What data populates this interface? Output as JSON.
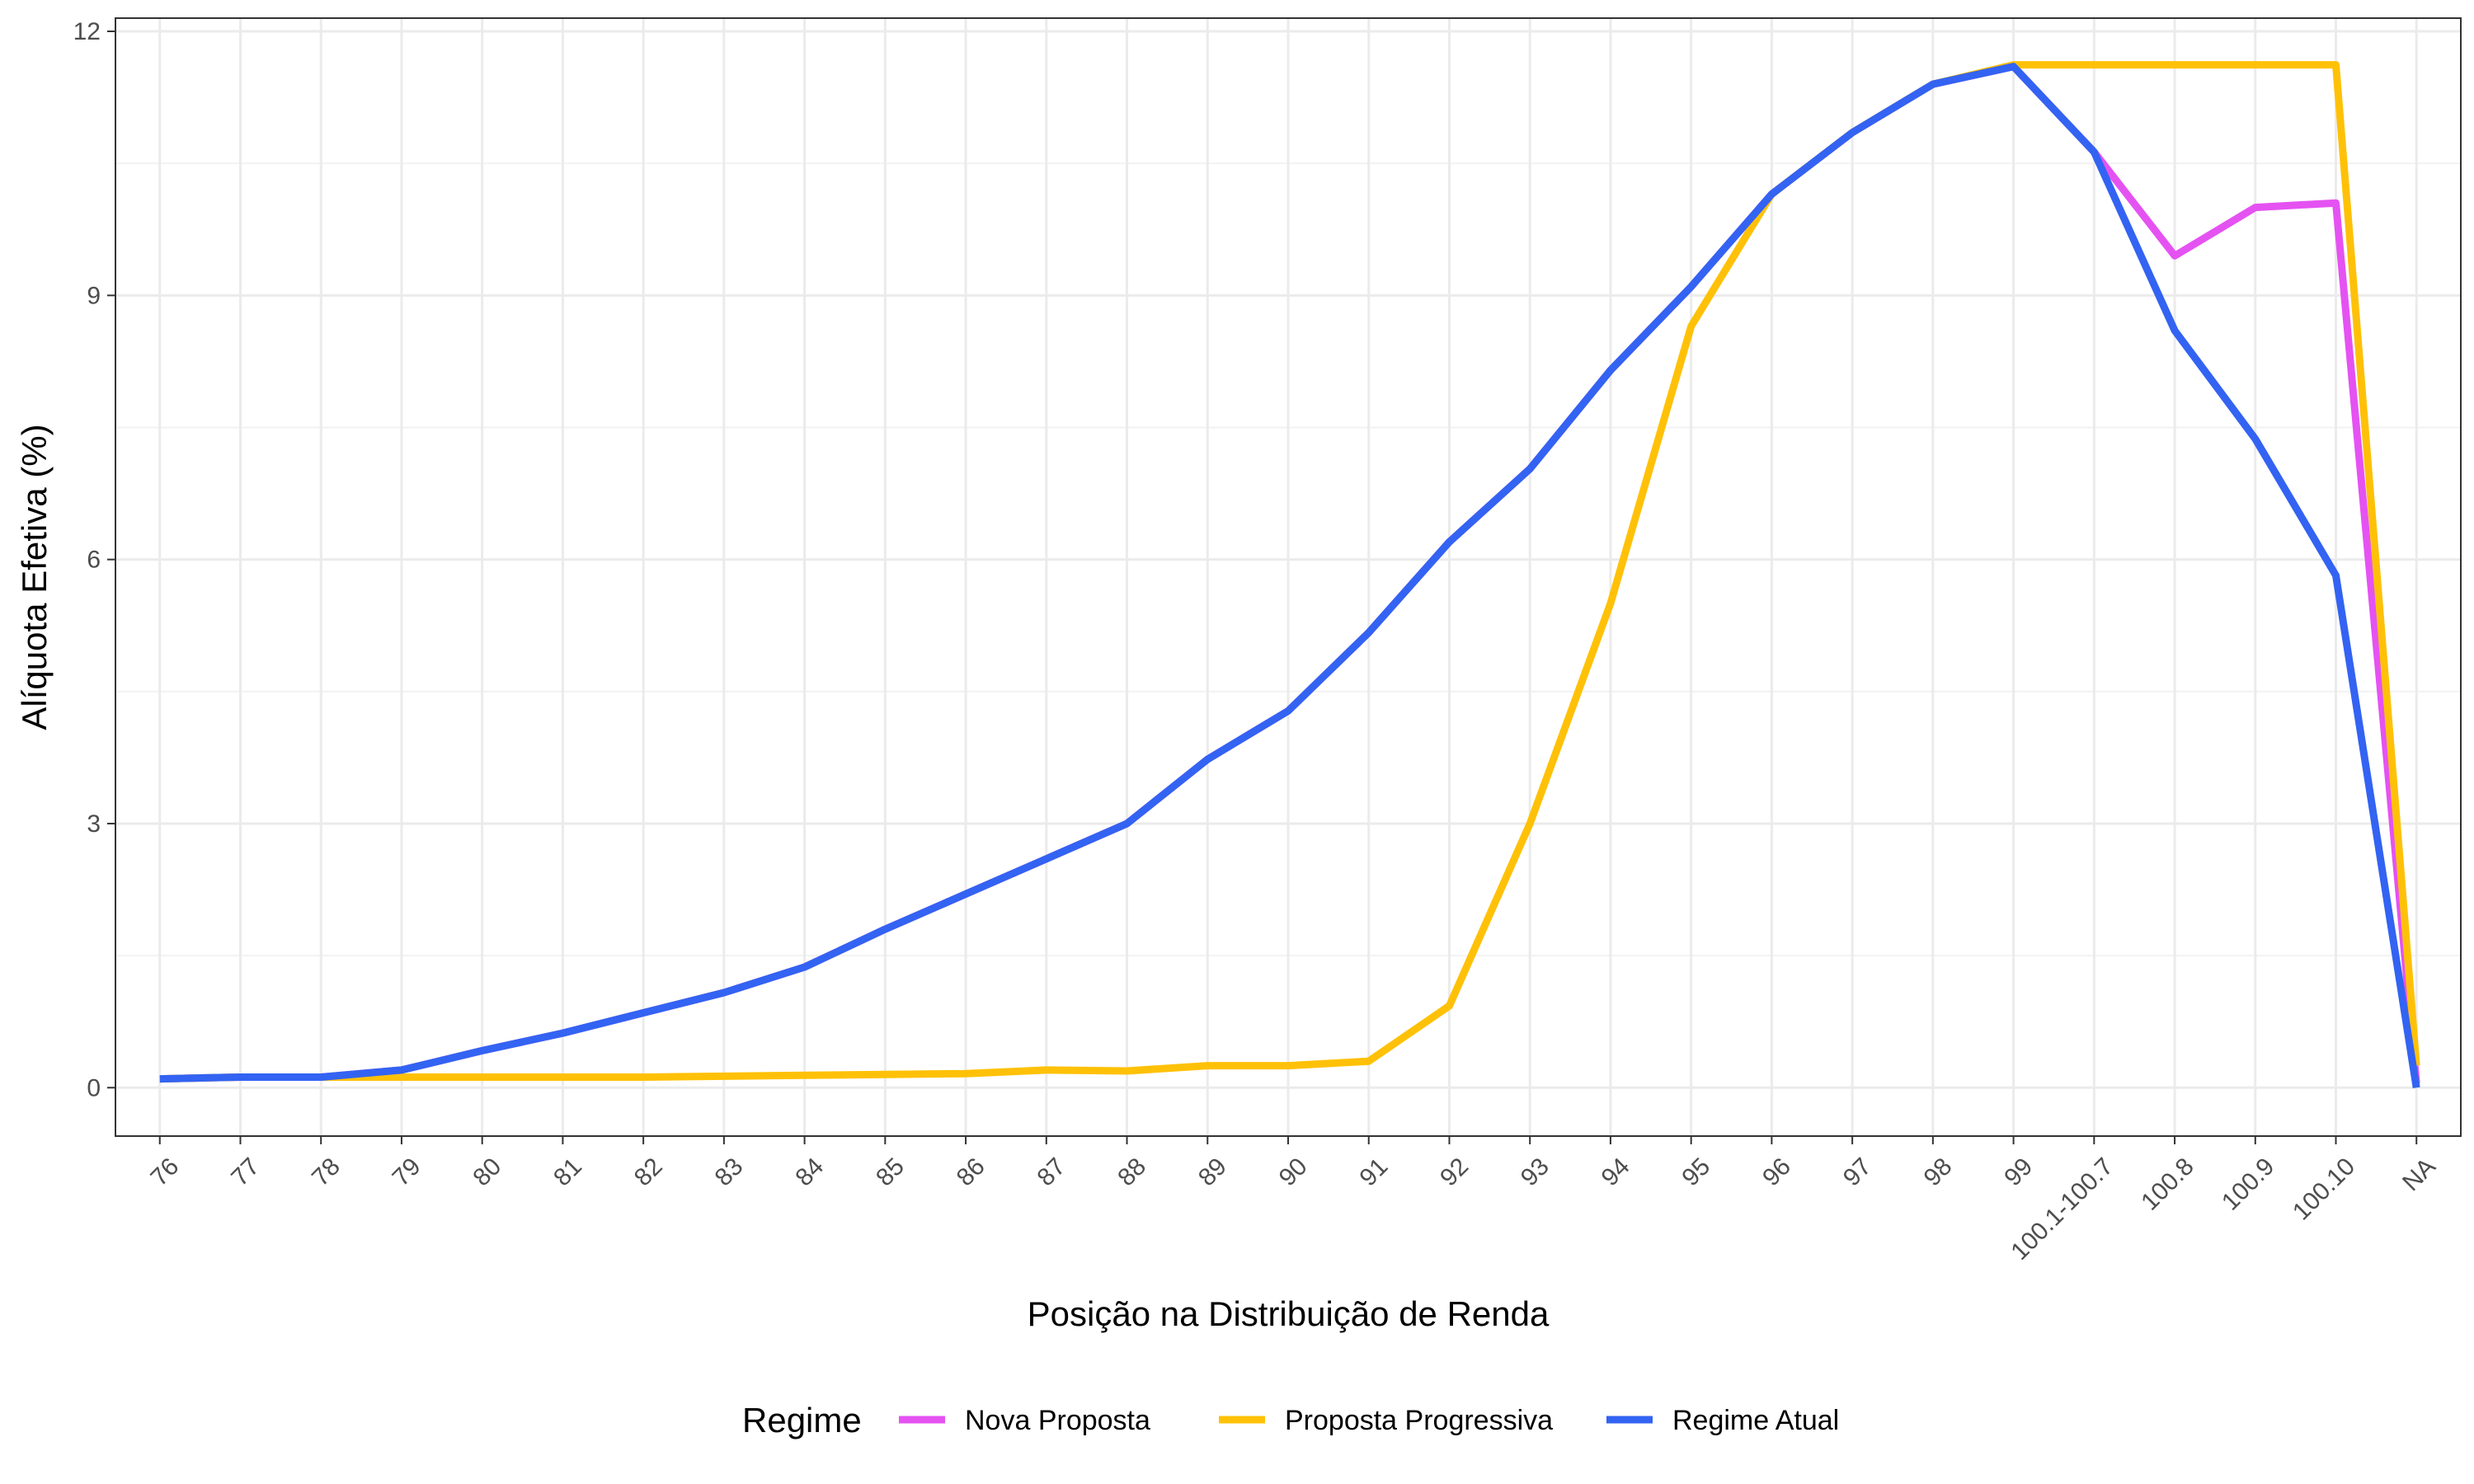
{
  "chart_data": {
    "type": "line",
    "xlabel": "Posição na Distribuição de Renda",
    "ylabel": "Alíquota Efetiva (%)",
    "categories": [
      "76",
      "77",
      "78",
      "79",
      "80",
      "81",
      "82",
      "83",
      "84",
      "85",
      "86",
      "87",
      "88",
      "89",
      "90",
      "91",
      "92",
      "93",
      "94",
      "95",
      "96",
      "97",
      "98",
      "99",
      "100.1-100.7",
      "100.8",
      "100.9",
      "100.10",
      "NA"
    ],
    "ylim": [
      -0.55,
      12.15
    ],
    "yticks": [
      0,
      3,
      6,
      9,
      12
    ],
    "grid": true,
    "legend": {
      "title": "Regime",
      "position": "bottom",
      "entries": [
        "Nova Proposta",
        "Proposta Progressiva",
        "Regime Atual"
      ]
    },
    "series": [
      {
        "name": "Nova Proposta",
        "color": "#e552f2",
        "values": [
          0.1,
          0.12,
          0.12,
          0.2,
          0.42,
          0.62,
          0.85,
          1.08,
          1.37,
          1.8,
          2.2,
          2.6,
          3.0,
          3.73,
          4.28,
          5.17,
          6.2,
          7.03,
          8.15,
          9.1,
          10.15,
          10.85,
          11.4,
          11.6,
          10.63,
          9.45,
          10.0,
          10.05,
          0.05
        ]
      },
      {
        "name": "Proposta Progressiva",
        "color": "#ffc107",
        "values": [
          0.1,
          0.12,
          0.12,
          0.12,
          0.12,
          0.12,
          0.12,
          0.13,
          0.14,
          0.15,
          0.16,
          0.2,
          0.19,
          0.25,
          0.25,
          0.3,
          0.93,
          3.0,
          5.5,
          8.65,
          10.15,
          10.85,
          11.4,
          11.62,
          11.62,
          11.62,
          11.62,
          11.62,
          0.25
        ]
      },
      {
        "name": "Regime Atual",
        "color": "#3363f2",
        "values": [
          0.1,
          0.12,
          0.12,
          0.2,
          0.42,
          0.62,
          0.85,
          1.08,
          1.37,
          1.8,
          2.2,
          2.6,
          3.0,
          3.73,
          4.28,
          5.17,
          6.2,
          7.03,
          8.15,
          9.1,
          10.15,
          10.85,
          11.4,
          11.6,
          10.63,
          8.6,
          7.37,
          5.82,
          0.0
        ]
      }
    ]
  }
}
